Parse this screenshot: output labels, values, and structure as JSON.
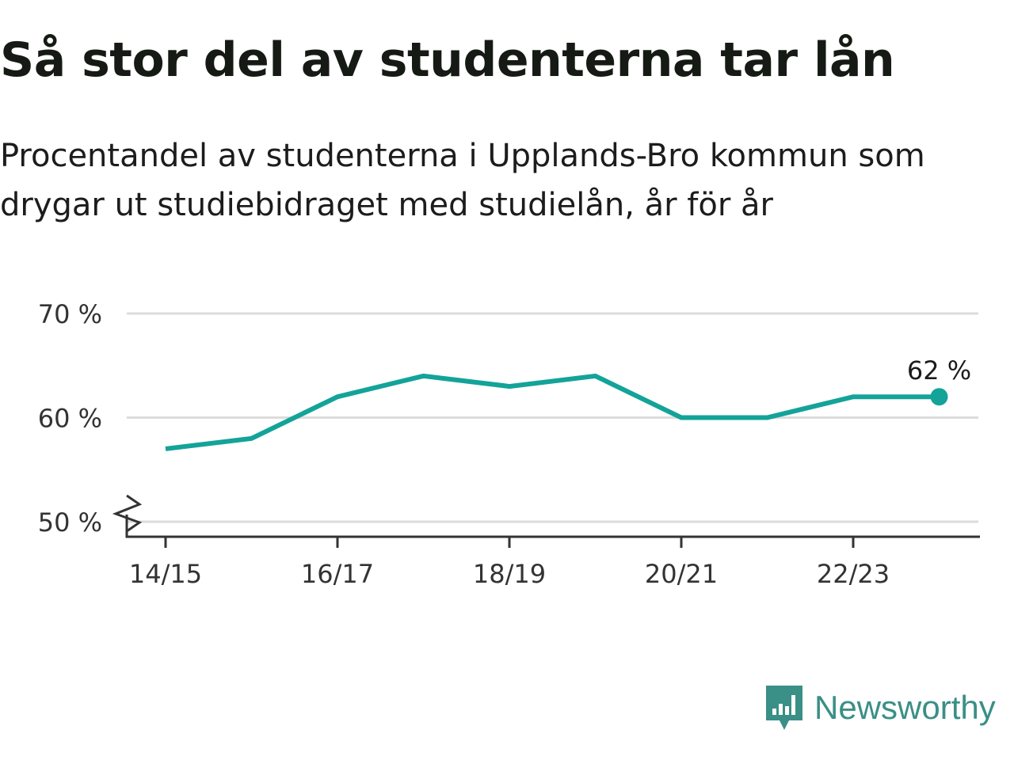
{
  "title": "Så stor del av studenterna tar lån",
  "subtitle": "Procentandel av studenterna i Upplands-Bro kommun som drygar ut studiebidraget med studielån, år för år",
  "brand": {
    "name": "Newsworthy",
    "icon": "newsworthy-logo-icon",
    "color": "#3a8f86"
  },
  "chart_data": {
    "type": "line",
    "x": [
      "14/15",
      "15/16",
      "16/17",
      "17/18",
      "18/19",
      "19/20",
      "20/21",
      "21/22",
      "22/23",
      "23/24"
    ],
    "series": [
      {
        "values": [
          57,
          58,
          62,
          64,
          63,
          64,
          60,
          60,
          62,
          62
        ],
        "color": "#13a399"
      }
    ],
    "xticks": [
      "14/15",
      "16/17",
      "18/19",
      "20/21",
      "22/23"
    ],
    "yticks": [
      {
        "value": 50,
        "label": "50 %"
      },
      {
        "value": 60,
        "label": "60 %"
      },
      {
        "value": 70,
        "label": "70 %"
      }
    ],
    "ylim": [
      50,
      70
    ],
    "last_value_label": "62 %",
    "axis_break": true,
    "grid": true,
    "xlabel": "",
    "ylabel": ""
  }
}
